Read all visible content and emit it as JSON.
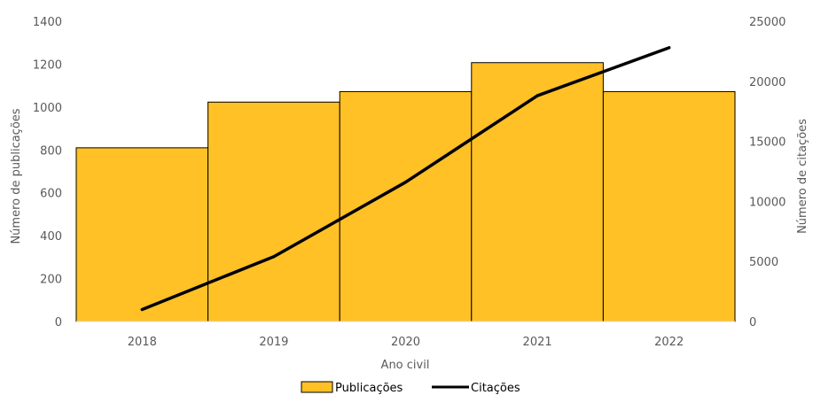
{
  "chart_data": {
    "type": "bar",
    "categories": [
      "2018",
      "2019",
      "2020",
      "2021",
      "2022"
    ],
    "series": [
      {
        "name": "Publicações",
        "type": "bar",
        "axis": "left",
        "color": "#FFC125",
        "values": [
          810,
          1023,
          1072,
          1207,
          1072
        ]
      },
      {
        "name": "Citações",
        "type": "line",
        "axis": "right",
        "color": "#000000",
        "values": [
          1000,
          5400,
          11600,
          18800,
          22800
        ]
      }
    ],
    "xlabel": "Ano civil",
    "ylabel": "Número de publicações",
    "y2label": "Número de citações",
    "ylim": [
      0,
      1400
    ],
    "y2lim": [
      0,
      25000
    ],
    "yticks": [
      "0",
      "200",
      "400",
      "600",
      "800",
      "1000",
      "1200",
      "1400"
    ],
    "y2ticks": [
      "0",
      "5000",
      "10000",
      "15000",
      "20000",
      "25000"
    ],
    "grid": false,
    "legend_position": "bottom"
  }
}
